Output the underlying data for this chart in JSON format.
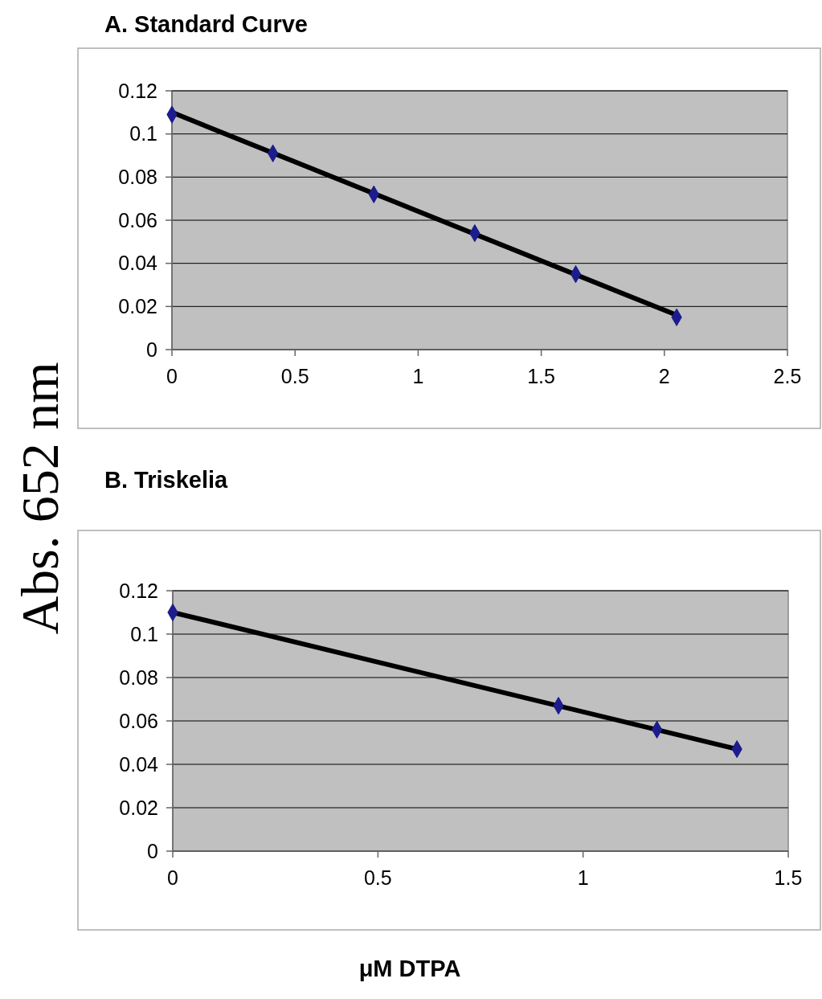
{
  "chart_data": [
    {
      "type": "scatter",
      "title": "A. Standard Curve",
      "ylabel": "Abs. 652 nm",
      "xlim": [
        0,
        2.5
      ],
      "xticks": [
        0,
        0.5,
        1,
        1.5,
        2,
        2.5
      ],
      "ylim": [
        0,
        0.12
      ],
      "yticks": [
        0,
        0.02,
        0.04,
        0.06,
        0.08,
        0.1,
        0.12
      ],
      "grid": "y",
      "series": [
        {
          "marker": "diamond",
          "color": "#1c1c8c",
          "x": [
            0,
            0.41,
            0.82,
            1.23,
            1.64,
            2.05
          ],
          "values": [
            0.109,
            0.091,
            0.072,
            0.054,
            0.035,
            0.015
          ]
        },
        {
          "type": "line",
          "color": "#000000",
          "x": [
            0,
            2.05
          ],
          "values": [
            0.11,
            0.016
          ]
        }
      ]
    },
    {
      "type": "scatter",
      "title": "B. Triskelia",
      "xlabel": "μM DTPA",
      "xlim": [
        0,
        1.5
      ],
      "xticks": [
        0,
        0.5,
        1,
        1.5
      ],
      "ylim": [
        0,
        0.12
      ],
      "yticks": [
        0,
        0.02,
        0.04,
        0.06,
        0.08,
        0.1,
        0.12
      ],
      "grid": "y",
      "series": [
        {
          "marker": "diamond",
          "color": "#1c1c8c",
          "x": [
            0,
            0.94,
            1.18,
            1.375
          ],
          "values": [
            0.11,
            0.067,
            0.056,
            0.047
          ]
        },
        {
          "type": "line",
          "color": "#000000",
          "x": [
            0,
            1.375
          ],
          "values": [
            0.11,
            0.047
          ]
        }
      ]
    }
  ]
}
